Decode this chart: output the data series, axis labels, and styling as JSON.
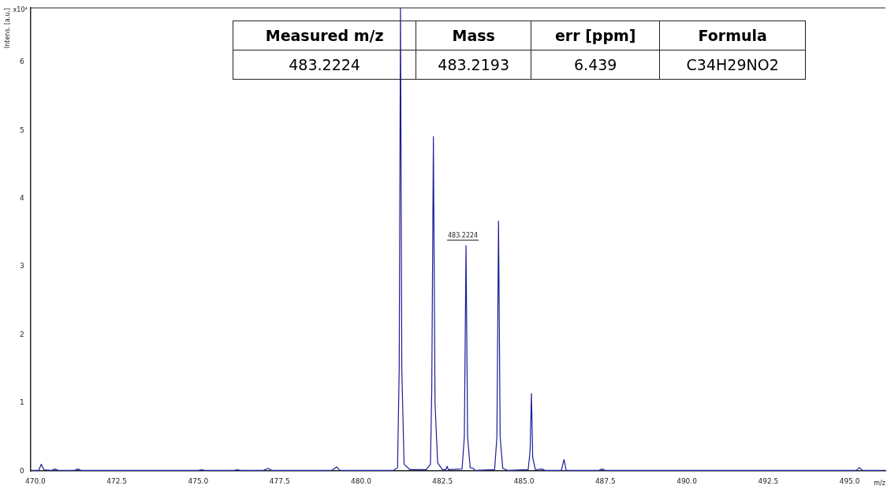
{
  "chart_data": {
    "type": "line",
    "xlabel": "m/z",
    "ylabel": "Intens. [a.u.]",
    "annotations": [
      "x10⁴",
      {
        "text": "483.2224",
        "x": 483.2224,
        "y": 3.31
      },
      "Measured m/z",
      "Mass",
      "err [ppm]",
      "Formula",
      "483.2224",
      "483.2193",
      "6.439",
      "C34H29NO2"
    ],
    "series": [
      {
        "color": "#1c1c96",
        "x": [
          469.85,
          470.1,
          470.18,
          470.26,
          470.5,
          470.6,
          470.7,
          471.2,
          471.3,
          471.4,
          475.0,
          475.1,
          475.2,
          476.1,
          476.2,
          476.3,
          477.0,
          477.15,
          477.25,
          479.1,
          479.25,
          479.35,
          481.0,
          481.12,
          481.17,
          481.21,
          481.25,
          481.32,
          481.5,
          482.0,
          482.13,
          482.17,
          482.22,
          482.27,
          482.35,
          482.5,
          482.6,
          482.64,
          482.68,
          483.1,
          483.17,
          483.2224,
          483.27,
          483.35,
          483.44,
          483.5,
          484.1,
          484.17,
          484.22,
          484.27,
          484.35,
          484.5,
          485.13,
          485.19,
          485.23,
          485.27,
          485.35,
          485.55,
          485.65,
          486.15,
          486.23,
          486.3,
          487.3,
          487.4,
          487.5,
          495.2,
          495.3,
          495.4,
          496.1
        ],
        "values": [
          0.01,
          0.01,
          0.1,
          0.02,
          0.01,
          0.03,
          0.01,
          0.01,
          0.03,
          0.01,
          0.01,
          0.02,
          0.01,
          0.01,
          0.02,
          0.01,
          0.01,
          0.04,
          0.01,
          0.01,
          0.06,
          0.01,
          0.01,
          0.05,
          1.5,
          6.8,
          1.5,
          0.1,
          0.02,
          0.02,
          0.1,
          1.2,
          4.91,
          1.0,
          0.12,
          0.02,
          0.02,
          0.07,
          0.02,
          0.03,
          0.5,
          3.31,
          0.5,
          0.05,
          0.04,
          0.01,
          0.02,
          0.5,
          3.67,
          0.5,
          0.04,
          0.01,
          0.02,
          0.3,
          1.14,
          0.2,
          0.02,
          0.03,
          0.01,
          0.01,
          0.17,
          0.01,
          0.01,
          0.03,
          0.01,
          0.01,
          0.05,
          0.01,
          0.01
        ]
      }
    ],
    "xlim": [
      469.85,
      496.1
    ],
    "xticks": [
      {
        "value": 470,
        "label": "470.0"
      },
      {
        "value": 472.5,
        "label": "472.5"
      },
      {
        "value": 475,
        "label": "475.0"
      },
      {
        "value": 477.5,
        "label": "477.5"
      },
      {
        "value": 480,
        "label": "480.0"
      },
      {
        "value": 482.5,
        "label": "482.5"
      },
      {
        "value": 485,
        "label": "485.0"
      },
      {
        "value": 487.5,
        "label": "487.5"
      },
      {
        "value": 490,
        "label": "490.0"
      },
      {
        "value": 492.5,
        "label": "492.5"
      },
      {
        "value": 495,
        "label": "495.0"
      }
    ],
    "ylim": [
      0,
      6.8
    ],
    "yticks": [
      0,
      1,
      2,
      3,
      4,
      5,
      6
    ],
    "grid": false,
    "legend": false,
    "marker": "none",
    "line_style": "solid"
  }
}
